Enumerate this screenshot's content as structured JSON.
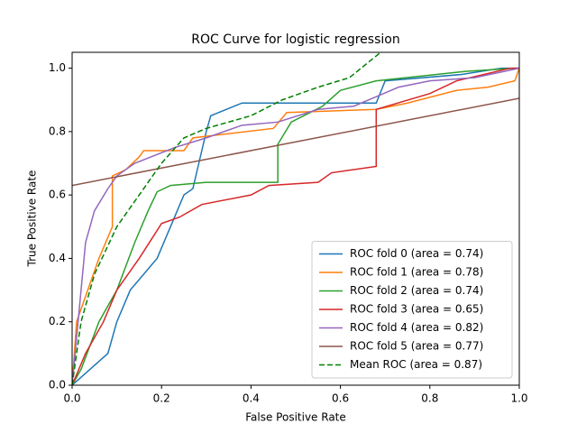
{
  "chart_data": {
    "type": "line",
    "title": "ROC Curve for logistic regression",
    "xlabel": "False Positive Rate",
    "ylabel": "True Positive Rate",
    "xlim": [
      0,
      1
    ],
    "ylim": [
      0,
      1.05
    ],
    "xticks": [
      {
        "value": 0,
        "label": "0.0"
      },
      {
        "value": 0.2,
        "label": "0.2"
      },
      {
        "value": 0.4,
        "label": "0.4"
      },
      {
        "value": 0.6,
        "label": "0.6"
      },
      {
        "value": 0.8,
        "label": "0.8"
      },
      {
        "value": 1,
        "label": "1.0"
      }
    ],
    "yticks": [
      {
        "value": 0,
        "label": "0.0"
      },
      {
        "value": 0.2,
        "label": "0.2"
      },
      {
        "value": 0.4,
        "label": "0.4"
      },
      {
        "value": 0.6,
        "label": "0.6"
      },
      {
        "value": 0.8,
        "label": "0.8"
      },
      {
        "value": 1,
        "label": "1.0"
      }
    ],
    "legend": "lower right",
    "series": [
      {
        "name": "ROC fold 0 (area = 0.74)",
        "color": "#1f77b4",
        "linestyle": "solid",
        "x": [
          0,
          0.08,
          0.1,
          0.13,
          0.19,
          0.22,
          0.25,
          0.27,
          0.3,
          0.31,
          0.38,
          0.68,
          0.7,
          0.87,
          0.96,
          1
        ],
        "values": [
          0,
          0.1,
          0.2,
          0.3,
          0.4,
          0.5,
          0.6,
          0.62,
          0.8,
          0.85,
          0.89,
          0.89,
          0.96,
          0.98,
          1,
          1
        ]
      },
      {
        "name": "ROC fold 1 (area = 0.78)",
        "color": "#ff7f0e",
        "linestyle": "solid",
        "x": [
          0,
          0.01,
          0.06,
          0.09,
          0.09,
          0.12,
          0.15,
          0.16,
          0.25,
          0.27,
          0.45,
          0.48,
          0.68,
          0.75,
          0.86,
          0.93,
          0.99,
          1
        ],
        "values": [
          0,
          0.2,
          0.4,
          0.5,
          0.66,
          0.68,
          0.72,
          0.74,
          0.74,
          0.78,
          0.81,
          0.86,
          0.87,
          0.89,
          0.93,
          0.94,
          0.96,
          1
        ]
      },
      {
        "name": "ROC fold 2 (area = 0.74)",
        "color": "#2ca02c",
        "linestyle": "solid",
        "x": [
          0,
          0.02,
          0.06,
          0.1,
          0.14,
          0.17,
          0.19,
          0.22,
          0.3,
          0.46,
          0.46,
          0.49,
          0.56,
          0.6,
          0.68,
          0.88,
          0.99,
          1
        ],
        "values": [
          0,
          0.05,
          0.2,
          0.3,
          0.45,
          0.55,
          0.61,
          0.63,
          0.64,
          0.64,
          0.76,
          0.83,
          0.88,
          0.93,
          0.96,
          0.99,
          1,
          1
        ]
      },
      {
        "name": "ROC fold 3 (area = 0.65)",
        "color": "#d62728",
        "linestyle": "solid",
        "x": [
          0,
          0.03,
          0.07,
          0.1,
          0.15,
          0.2,
          0.24,
          0.29,
          0.4,
          0.44,
          0.55,
          0.58,
          0.68,
          0.68,
          0.8,
          0.86,
          0.92,
          0.98,
          1
        ],
        "values": [
          0,
          0.1,
          0.2,
          0.3,
          0.4,
          0.51,
          0.53,
          0.57,
          0.6,
          0.63,
          0.64,
          0.67,
          0.69,
          0.87,
          0.92,
          0.96,
          0.98,
          1,
          1
        ]
      },
      {
        "name": "ROC fold 4 (area = 0.82)",
        "color": "#9467bd",
        "linestyle": "solid",
        "x": [
          0,
          0.02,
          0.03,
          0.05,
          0.08,
          0.1,
          0.14,
          0.23,
          0.3,
          0.38,
          0.46,
          0.55,
          0.63,
          0.68,
          0.73,
          0.8,
          0.9,
          1
        ],
        "values": [
          0,
          0.3,
          0.45,
          0.55,
          0.62,
          0.66,
          0.7,
          0.75,
          0.78,
          0.82,
          0.83,
          0.87,
          0.88,
          0.91,
          0.94,
          0.96,
          0.97,
          1
        ]
      },
      {
        "name": "ROC fold 5 (area = 0.77)",
        "color": "#8c564b",
        "linestyle": "solid",
        "x": [
          0,
          1
        ],
        "values": [
          0.63,
          0.905
        ]
      },
      {
        "name": "Mean ROC (area = 0.87)",
        "color": "#008000",
        "linestyle": "dashed",
        "x": [
          0,
          0.02,
          0.05,
          0.1,
          0.15,
          0.2,
          0.25,
          0.3,
          0.4,
          0.47,
          0.55,
          0.62,
          0.69
        ],
        "values": [
          0,
          0.2,
          0.35,
          0.5,
          0.6,
          0.7,
          0.78,
          0.81,
          0.85,
          0.9,
          0.94,
          0.97,
          1.05
        ]
      }
    ]
  }
}
